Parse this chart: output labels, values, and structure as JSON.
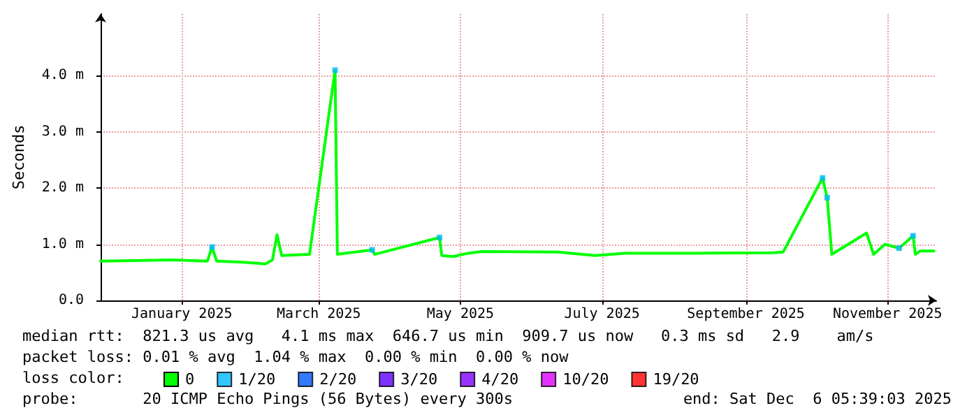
{
  "chart_data": {
    "type": "line",
    "ylabel": "Seconds",
    "legend_title": "loss color:",
    "x": [
      "2024-12-11",
      "2024-12-25",
      "2025-01-11",
      "2025-01-26",
      "2025-01-28",
      "2025-01-30",
      "2025-02-10",
      "2025-02-20",
      "2025-02-23",
      "2025-02-25",
      "2025-02-27",
      "2025-03-11",
      "2025-03-22",
      "2025-03-23",
      "2025-04-07",
      "2025-04-08",
      "2025-05-06",
      "2025-05-07",
      "2025-05-12",
      "2025-05-17",
      "2025-05-24",
      "2025-06-26",
      "2025-07-12",
      "2025-07-25",
      "2025-08-24",
      "2025-09-27",
      "2025-10-01",
      "2025-10-18",
      "2025-10-20",
      "2025-10-22",
      "2025-11-06",
      "2025-11-09",
      "2025-11-14",
      "2025-11-20",
      "2025-11-26",
      "2025-11-27",
      "2025-11-29",
      "2025-12-05"
    ],
    "series": [
      {
        "name": "0",
        "color": "#00ff00",
        "values": [
          0.7,
          0.71,
          0.72,
          0.7,
          0.95,
          0.7,
          0.68,
          0.65,
          0.72,
          1.17,
          0.8,
          0.82,
          4.1,
          0.82,
          0.9,
          0.82,
          1.12,
          0.8,
          0.78,
          0.83,
          0.87,
          0.86,
          0.8,
          0.84,
          0.84,
          0.85,
          0.86,
          2.18,
          1.83,
          0.82,
          1.2,
          0.82,
          1.0,
          0.93,
          1.15,
          0.82,
          0.88,
          0.88
        ]
      },
      {
        "name": "1/20",
        "color": "#00b8ff",
        "type": "scatter",
        "marker": "square",
        "x": [
          "2025-01-28",
          "2025-03-22",
          "2025-04-07",
          "2025-05-06",
          "2025-10-18",
          "2025-10-20",
          "2025-11-20",
          "2025-11-26"
        ],
        "values": [
          0.95,
          4.1,
          0.9,
          1.12,
          2.18,
          1.83,
          0.93,
          1.15
        ]
      },
      {
        "name": "2/20",
        "color": "#0059ff",
        "type": "scatter",
        "values": [
          null,
          null,
          null,
          null,
          null,
          null,
          null,
          null,
          null,
          null,
          null,
          null,
          null,
          null,
          null,
          null,
          null,
          null,
          null,
          null,
          null,
          null,
          null,
          null,
          null,
          null,
          null,
          null,
          null,
          null,
          null,
          null,
          null,
          null,
          null,
          null,
          null,
          null
        ]
      },
      {
        "name": "3/20",
        "color": "#5e00ff",
        "type": "scatter",
        "values": [
          null,
          null,
          null,
          null,
          null,
          null,
          null,
          null,
          null,
          null,
          null,
          null,
          null,
          null,
          null,
          null,
          null,
          null,
          null,
          null,
          null,
          null,
          null,
          null,
          null,
          null,
          null,
          null,
          null,
          null,
          null,
          null,
          null,
          null,
          null,
          null,
          null,
          null
        ]
      },
      {
        "name": "4/20",
        "color": "#7e00ff",
        "type": "scatter",
        "values": [
          null,
          null,
          null,
          null,
          null,
          null,
          null,
          null,
          null,
          null,
          null,
          null,
          null,
          null,
          null,
          null,
          null,
          null,
          null,
          null,
          null,
          null,
          null,
          null,
          null,
          null,
          null,
          null,
          null,
          null,
          null,
          null,
          null,
          null,
          null,
          null,
          null,
          null
        ]
      },
      {
        "name": "10/20",
        "color": "#dd00ff",
        "type": "scatter",
        "values": [
          null,
          null,
          null,
          null,
          null,
          null,
          null,
          null,
          null,
          null,
          null,
          null,
          null,
          null,
          null,
          null,
          null,
          null,
          null,
          null,
          null,
          null,
          null,
          null,
          null,
          null,
          null,
          null,
          null,
          null,
          null,
          null,
          null,
          null,
          null,
          null,
          null,
          null
        ]
      },
      {
        "name": "19/20",
        "color": "#ff0000",
        "type": "scatter",
        "values": [
          null,
          null,
          null,
          null,
          null,
          null,
          null,
          null,
          null,
          null,
          null,
          null,
          null,
          null,
          null,
          null,
          null,
          null,
          null,
          null,
          null,
          null,
          null,
          null,
          null,
          null,
          null,
          null,
          null,
          null,
          null,
          null,
          null,
          null,
          null,
          null,
          null,
          null
        ]
      }
    ],
    "xlim": [
      "2024-12-11",
      "2025-12-06"
    ],
    "xticks": [
      {
        "value": "2025-01-15",
        "label": "January 2025"
      },
      {
        "value": "2025-03-15",
        "label": "March 2025"
      },
      {
        "value": "2025-05-15",
        "label": "May 2025"
      },
      {
        "value": "2025-07-15",
        "label": "July 2025"
      },
      {
        "value": "2025-09-15",
        "label": "September 2025"
      },
      {
        "value": "2025-11-15",
        "label": "November 2025"
      }
    ],
    "ylim": [
      0,
      5.1
    ],
    "yticks": [
      {
        "value": 0,
        "label": "0.0"
      },
      {
        "value": 1,
        "label": "1.0 m"
      },
      {
        "value": 2,
        "label": "2.0 m"
      },
      {
        "value": 3,
        "label": "3.0 m"
      },
      {
        "value": 4,
        "label": "4.0 m"
      }
    ],
    "grid": true,
    "legend": "bottom",
    "annotations": [
      "median rtt:  821.3 us avg   4.1 ms max  646.7 us min  909.7 us now   0.3 ms sd   2.9    am/s",
      "packet loss: 0.01 % avg  1.04 % max  0.00 % min  0.00 % now",
      "probe:       20 ICMP Echo Pings (56 Bytes) every 300s",
      "end: Sat Dec  6 05:39:03 2025"
    ]
  }
}
